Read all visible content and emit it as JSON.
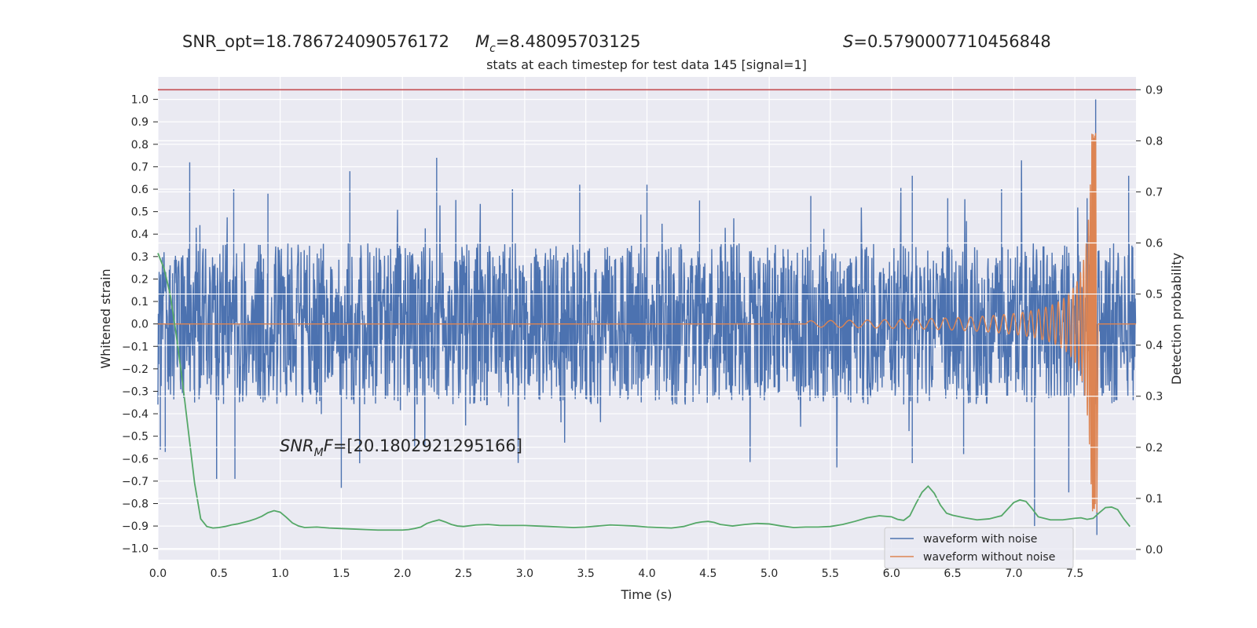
{
  "chart_data": {
    "type": "line",
    "title_stats": {
      "snr_opt": "SNR_opt=18.786724090576172",
      "mc_symbol": "M",
      "mc_subscript": "c",
      "mc_value": "=8.48095703125",
      "s_symbol": "S",
      "s_value": "=0.5790007710456848"
    },
    "title": "stats at each timestep for test data 145 [signal=1]",
    "annotation": {
      "symbol": "SNR",
      "subscript": "M",
      "tail": "F",
      "value": "=[20.180292129516​6]"
    },
    "xlabel": "Time (s)",
    "ylabel": "Whitened strain",
    "y2label": "Detection probability",
    "xlim": [
      0.0,
      8.0
    ],
    "ylim": [
      -1.05,
      1.1
    ],
    "y2lim": [
      -0.02,
      0.925
    ],
    "xticks": [
      "0.0",
      "0.5",
      "1.0",
      "1.5",
      "2.0",
      "2.5",
      "3.0",
      "3.5",
      "4.0",
      "4.5",
      "5.0",
      "5.5",
      "6.0",
      "6.5",
      "7.0",
      "7.5"
    ],
    "yticks": [
      "1.0",
      "0.9",
      "0.8",
      "0.7",
      "0.6",
      "0.5",
      "0.4",
      "0.3",
      "0.2",
      "0.1",
      "0.0",
      "−0.1",
      "−0.2",
      "−0.3",
      "−0.4",
      "−0.5",
      "−0.6",
      "−0.7",
      "−0.8",
      "−0.9",
      "−1.0"
    ],
    "y2ticks": [
      "0.9",
      "0.8",
      "0.7",
      "0.6",
      "0.5",
      "0.4",
      "0.3",
      "0.2",
      "0.1",
      "0.0"
    ],
    "threshold": 0.9,
    "legend": [
      "waveform with noise",
      "waveform without noise"
    ],
    "legend_position": "lower-right",
    "grid": true,
    "colors": {
      "noise": "#4c72b0",
      "signal": "#dd8452",
      "probability": "#55a868",
      "threshold": "#c44e52",
      "background": "#eaeaf2"
    },
    "series": [
      {
        "name": "waveform with noise",
        "axis": "left",
        "description_values": "noise band roughly within ±0.35 with spikes up to 0.74 / down to -0.73; max 1.0 near t=7.67",
        "spikes": [
          [
            0.02,
            -0.56
          ],
          [
            0.06,
            -0.57
          ],
          [
            0.26,
            0.72
          ],
          [
            0.3,
            -0.35
          ],
          [
            0.48,
            -0.69
          ],
          [
            0.62,
            0.6
          ],
          [
            0.63,
            -0.69
          ],
          [
            0.9,
            0.58
          ],
          [
            1.5,
            -0.73
          ],
          [
            1.57,
            0.68
          ],
          [
            2.28,
            0.74
          ],
          [
            2.9,
            0.6
          ],
          [
            3.45,
            0.62
          ],
          [
            4.0,
            0.62
          ],
          [
            4.43,
            0.55
          ],
          [
            5.34,
            0.57
          ],
          [
            6.17,
            0.66
          ],
          [
            6.17,
            -0.62
          ],
          [
            6.46,
            0.56
          ],
          [
            6.59,
            -0.58
          ],
          [
            6.9,
            0.6
          ],
          [
            7.17,
            -0.9
          ],
          [
            7.45,
            -0.75
          ],
          [
            7.6,
            0.56
          ],
          [
            7.67,
            1.0
          ],
          [
            7.68,
            -0.94
          ],
          [
            7.94,
            0.66
          ]
        ]
      },
      {
        "name": "waveform without noise",
        "axis": "left",
        "chirp": {
          "start": 5.3,
          "merger": 7.67,
          "peak": 0.85,
          "min": -0.84
        }
      },
      {
        "name": "detection probability",
        "axis": "right",
        "x": [
          0.0,
          0.05,
          0.1,
          0.15,
          0.2,
          0.25,
          0.3,
          0.35,
          0.4,
          0.45,
          0.5,
          0.55,
          0.6,
          0.65,
          0.7,
          0.75,
          0.8,
          0.85,
          0.9,
          0.95,
          1.0,
          1.05,
          1.1,
          1.15,
          1.2,
          1.3,
          1.4,
          1.5,
          1.6,
          1.7,
          1.8,
          1.9,
          2.0,
          2.05,
          2.1,
          2.15,
          2.2,
          2.25,
          2.3,
          2.35,
          2.4,
          2.45,
          2.5,
          2.6,
          2.7,
          2.8,
          2.9,
          3.0,
          3.1,
          3.2,
          3.3,
          3.4,
          3.5,
          3.6,
          3.7,
          3.8,
          3.9,
          4.0,
          4.1,
          4.2,
          4.3,
          4.4,
          4.45,
          4.5,
          4.55,
          4.6,
          4.7,
          4.8,
          4.9,
          5.0,
          5.1,
          5.2,
          5.3,
          5.4,
          5.5,
          5.6,
          5.7,
          5.8,
          5.9,
          6.0,
          6.05,
          6.1,
          6.15,
          6.2,
          6.25,
          6.3,
          6.35,
          6.4,
          6.45,
          6.5,
          6.6,
          6.7,
          6.8,
          6.9,
          7.0,
          7.05,
          7.1,
          7.15,
          7.2,
          7.3,
          7.4,
          7.5,
          7.55,
          7.6,
          7.65,
          7.7,
          7.75,
          7.8,
          7.85,
          7.9,
          7.95
        ],
        "values": [
          0.58,
          0.55,
          0.5,
          0.42,
          0.33,
          0.23,
          0.13,
          0.06,
          0.045,
          0.042,
          0.043,
          0.045,
          0.048,
          0.05,
          0.053,
          0.056,
          0.06,
          0.065,
          0.072,
          0.076,
          0.073,
          0.063,
          0.052,
          0.046,
          0.043,
          0.044,
          0.042,
          0.041,
          0.04,
          0.039,
          0.038,
          0.038,
          0.038,
          0.039,
          0.041,
          0.044,
          0.051,
          0.055,
          0.058,
          0.054,
          0.049,
          0.046,
          0.045,
          0.048,
          0.049,
          0.047,
          0.047,
          0.047,
          0.046,
          0.045,
          0.044,
          0.043,
          0.044,
          0.046,
          0.048,
          0.047,
          0.046,
          0.044,
          0.043,
          0.042,
          0.045,
          0.052,
          0.054,
          0.055,
          0.053,
          0.049,
          0.046,
          0.049,
          0.051,
          0.05,
          0.046,
          0.043,
          0.044,
          0.044,
          0.045,
          0.049,
          0.055,
          0.062,
          0.066,
          0.064,
          0.059,
          0.057,
          0.066,
          0.09,
          0.112,
          0.124,
          0.11,
          0.087,
          0.071,
          0.067,
          0.062,
          0.058,
          0.06,
          0.066,
          0.092,
          0.097,
          0.094,
          0.08,
          0.064,
          0.058,
          0.058,
          0.061,
          0.062,
          0.059,
          0.061,
          0.072,
          0.082,
          0.083,
          0.078,
          0.06,
          0.045
        ]
      }
    ]
  }
}
